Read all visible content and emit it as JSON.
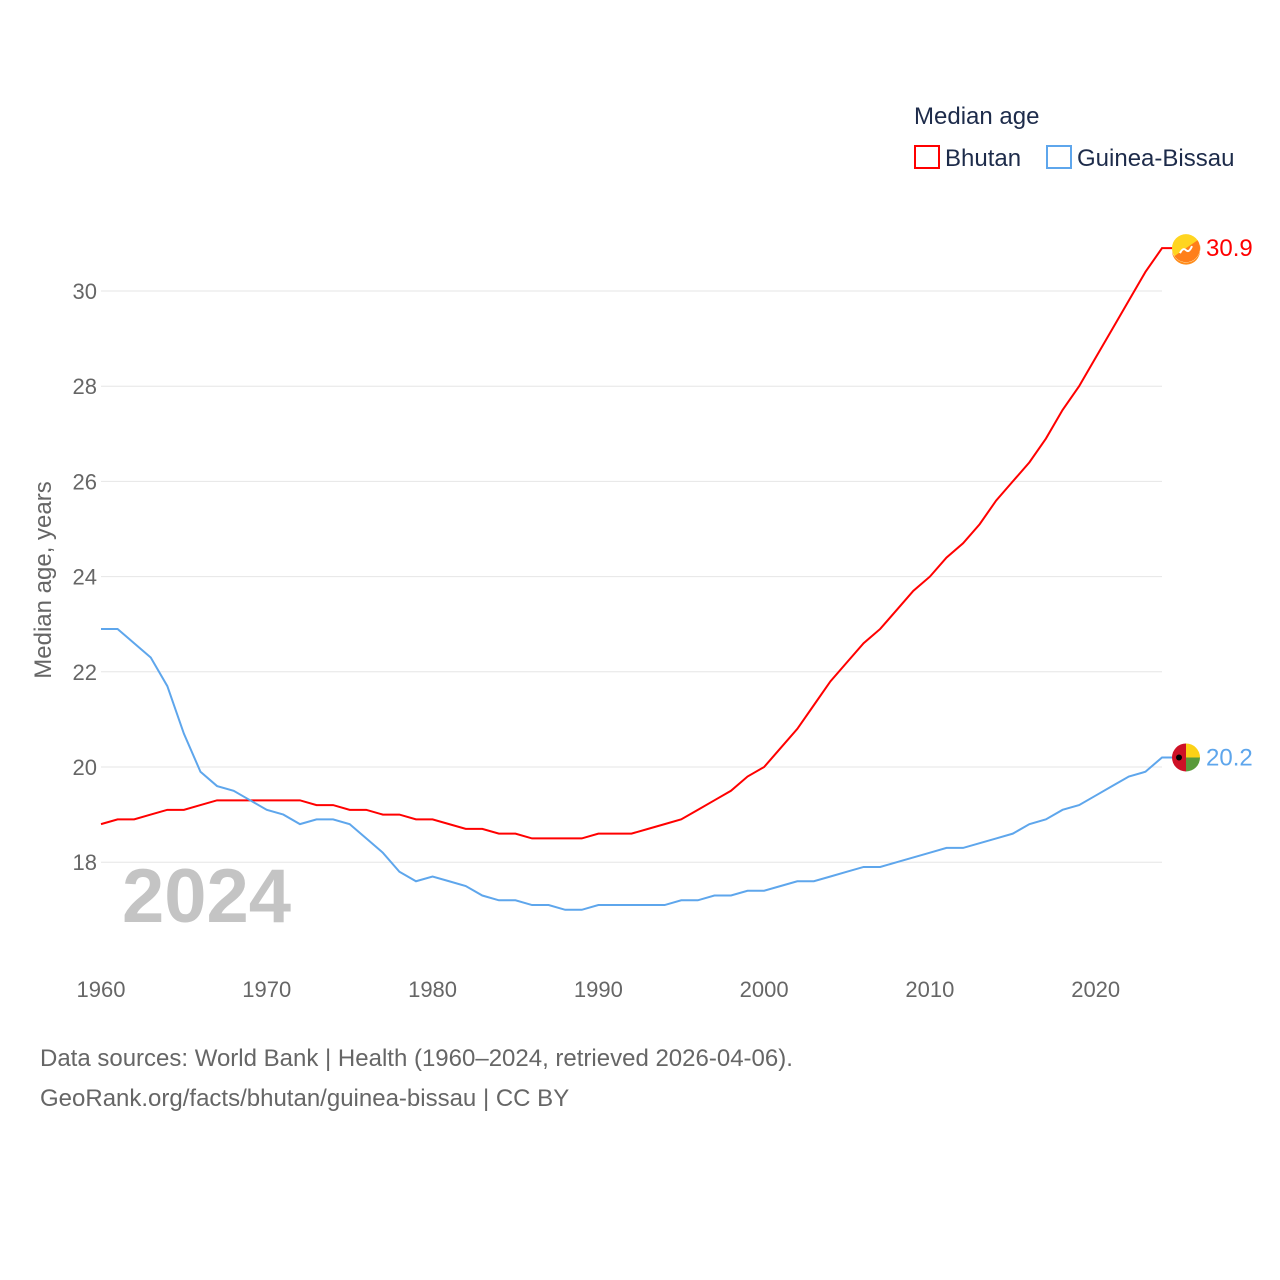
{
  "chart_data": {
    "type": "line",
    "title": "Median age",
    "xlabel": "",
    "ylabel": "Median age, years",
    "xlim": [
      1960,
      2024
    ],
    "ylim": [
      16.3,
      31.3
    ],
    "x_ticks": [
      1960,
      1970,
      1980,
      1990,
      2000,
      2010,
      2020
    ],
    "y_ticks": [
      18,
      20,
      22,
      24,
      26,
      28,
      30
    ],
    "grid": true,
    "legend_placement": "top-right",
    "year_watermark": "2024",
    "x": [
      1960,
      1961,
      1962,
      1963,
      1964,
      1965,
      1966,
      1967,
      1968,
      1969,
      1970,
      1971,
      1972,
      1973,
      1974,
      1975,
      1976,
      1977,
      1978,
      1979,
      1980,
      1981,
      1982,
      1983,
      1984,
      1985,
      1986,
      1987,
      1988,
      1989,
      1990,
      1991,
      1992,
      1993,
      1994,
      1995,
      1996,
      1997,
      1998,
      1999,
      2000,
      2001,
      2002,
      2003,
      2004,
      2005,
      2006,
      2007,
      2008,
      2009,
      2010,
      2011,
      2012,
      2013,
      2014,
      2015,
      2016,
      2017,
      2018,
      2019,
      2020,
      2021,
      2022,
      2023,
      2024
    ],
    "series": [
      {
        "name": "Bhutan",
        "color": "#ff0000",
        "end_label": "30.9",
        "values": [
          18.8,
          18.9,
          18.9,
          19.0,
          19.1,
          19.1,
          19.2,
          19.3,
          19.3,
          19.3,
          19.3,
          19.3,
          19.3,
          19.2,
          19.2,
          19.1,
          19.1,
          19.0,
          19.0,
          18.9,
          18.9,
          18.8,
          18.7,
          18.7,
          18.6,
          18.6,
          18.5,
          18.5,
          18.5,
          18.5,
          18.6,
          18.6,
          18.6,
          18.7,
          18.8,
          18.9,
          19.1,
          19.3,
          19.5,
          19.8,
          20.0,
          20.4,
          20.8,
          21.3,
          21.8,
          22.2,
          22.6,
          22.9,
          23.3,
          23.7,
          24.0,
          24.4,
          24.7,
          25.1,
          25.6,
          26.0,
          26.4,
          26.9,
          27.5,
          28.0,
          28.6,
          29.2,
          29.8,
          30.4,
          30.9
        ]
      },
      {
        "name": "Guinea-Bissau",
        "color": "#5ea6ec",
        "end_label": "20.2",
        "values": [
          22.9,
          22.9,
          22.6,
          22.3,
          21.7,
          20.7,
          19.9,
          19.6,
          19.5,
          19.3,
          19.1,
          19.0,
          18.8,
          18.9,
          18.9,
          18.8,
          18.5,
          18.2,
          17.8,
          17.6,
          17.7,
          17.6,
          17.5,
          17.3,
          17.2,
          17.2,
          17.1,
          17.1,
          17.0,
          17.0,
          17.1,
          17.1,
          17.1,
          17.1,
          17.1,
          17.2,
          17.2,
          17.3,
          17.3,
          17.4,
          17.4,
          17.5,
          17.6,
          17.6,
          17.7,
          17.8,
          17.9,
          17.9,
          18.0,
          18.1,
          18.2,
          18.3,
          18.3,
          18.4,
          18.5,
          18.6,
          18.8,
          18.9,
          19.1,
          19.2,
          19.4,
          19.6,
          19.8,
          19.9,
          20.2
        ]
      }
    ]
  },
  "footer": {
    "source": "Data sources: World Bank | Health (1960–2024, retrieved 2026-04-06).",
    "link": "GeoRank.org/facts/bhutan/guinea-bissau | CC BY"
  }
}
